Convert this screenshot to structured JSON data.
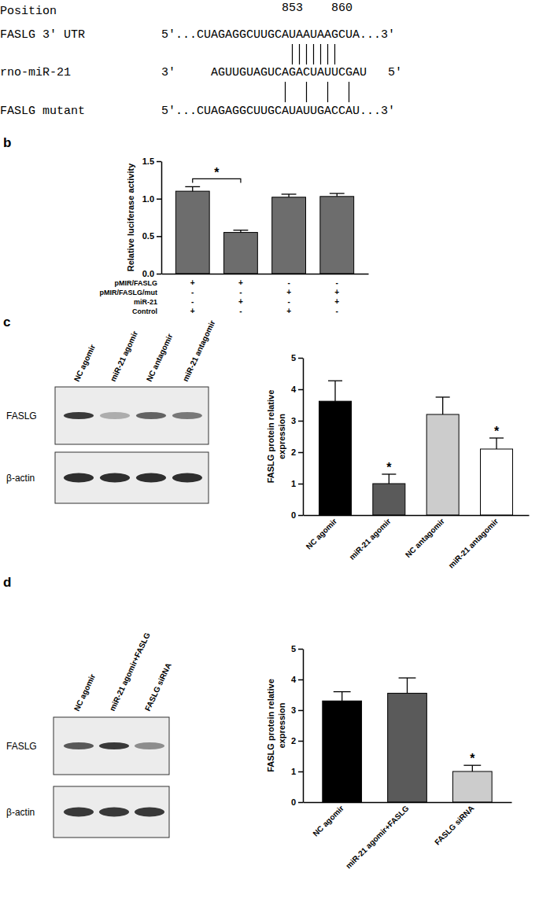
{
  "alignment": {
    "position_label": "Position",
    "positions": [
      853,
      860
    ],
    "rows": [
      {
        "label": "FASLG 3′ UTR",
        "sequence": "5′...CUAGAGGCUUGCAUAAUAAGCUA...3′"
      },
      {
        "label": "rno-miR-21",
        "prefix": "3′",
        "sequence": "AGUUGUAGUCAGACUAUUCGAU",
        "suffix": "5′"
      },
      {
        "label": "FASLG mutant",
        "sequence": "5′...CUAGAGGCUUGCAUAUUGACCAU...3′"
      }
    ]
  },
  "blots": [
    {
      "lanes": [
        "NC agomir",
        "miR-21 agomir",
        "NC antagomir",
        "miR-21 antagomir"
      ],
      "rows": [
        "FASLG",
        "β-actin"
      ]
    },
    {
      "lanes": [
        "NC agomir",
        "miR-21 agomir+FASLG",
        "FASLG siRNA"
      ],
      "rows": [
        "FASLG",
        "β-actin"
      ]
    }
  ],
  "chart_data": [
    {
      "panel_label": "b",
      "type": "bar",
      "y_label": "Relative luciferase activity",
      "categories": [
        null,
        null,
        null,
        null
      ],
      "values": [
        1.1,
        0.55,
        1.02,
        1.03
      ],
      "errors": [
        0.06,
        0.03,
        0.04,
        0.04
      ],
      "color": "#6d6d6d",
      "ylim": [
        0,
        1.5
      ],
      "yticks": [
        {
          "value": 0,
          "label": "0.0"
        },
        {
          "value": 0.5,
          "label": "0.5"
        },
        {
          "value": 1,
          "label": "1.0"
        },
        {
          "value": 1.5,
          "label": "1.5"
        }
      ],
      "conditions": [
        {
          "name": "pMIR/FASLG",
          "signs": [
            "+",
            "+",
            "-",
            "-"
          ]
        },
        {
          "name": "pMIR/FASLG/mut",
          "signs": [
            "-",
            "-",
            "+",
            "+"
          ]
        },
        {
          "name": "miR-21",
          "signs": [
            "-",
            "+",
            "-",
            "+"
          ]
        },
        {
          "name": "Control",
          "signs": [
            "+",
            "-",
            "+",
            "-"
          ]
        }
      ],
      "annotations": [
        {
          "text": "*",
          "from": 0,
          "to": 1
        }
      ]
    },
    {
      "panel_label": "c",
      "type": "bar",
      "y_label": [
        "FASLG protein relative",
        "expression"
      ],
      "categories": [
        "NC agomir",
        "miR-21 agomir",
        "NC antagomir",
        "miR-21 antagomir"
      ],
      "values": [
        3.62,
        1.0,
        3.2,
        2.1
      ],
      "errors": [
        0.65,
        0.3,
        0.55,
        0.35
      ],
      "colors": [
        "#000000",
        "#5a5a5a",
        "#cccccc",
        "#ffffff"
      ],
      "ylim": [
        0,
        5
      ],
      "yticks": [
        0,
        1,
        2,
        3,
        4,
        5
      ],
      "annotations": [
        {
          "text": "*",
          "index": 1
        },
        {
          "text": "*",
          "index": 3
        }
      ]
    },
    {
      "panel_label": "d",
      "type": "bar",
      "y_label": [
        "FASLG protein relative",
        "expression"
      ],
      "categories": [
        "NC agomir",
        "miR-21 agomir+FASLG",
        "FASLG siRNA"
      ],
      "values": [
        3.3,
        3.55,
        1.0
      ],
      "errors": [
        0.3,
        0.5,
        0.2
      ],
      "colors": [
        "#000000",
        "#5a5a5a",
        "#cccccc"
      ],
      "ylim": [
        0,
        5
      ],
      "yticks": [
        0,
        1,
        2,
        3,
        4,
        5
      ],
      "annotations": [
        {
          "text": "*",
          "index": 2
        }
      ]
    }
  ]
}
